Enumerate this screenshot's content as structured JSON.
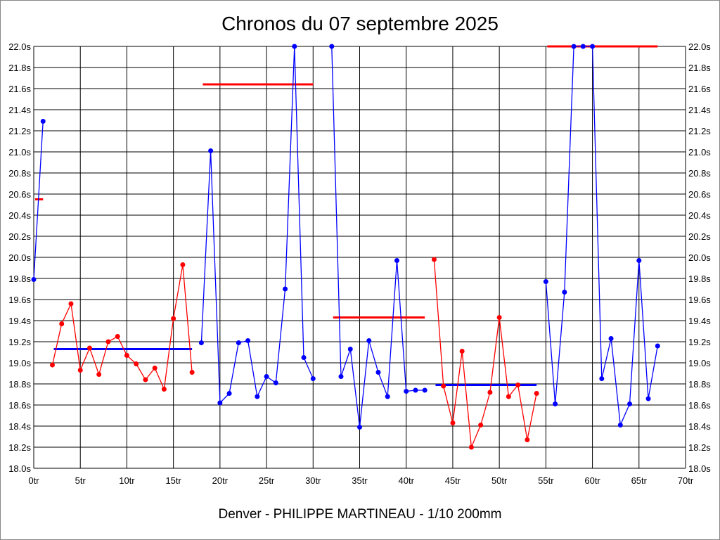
{
  "chart_data": {
    "type": "line",
    "title": "Chronos du 07 septembre 2025",
    "footer": "Denver - PHILIPPE MARTINEAU - 1/10 200mm",
    "xlim": [
      0,
      70
    ],
    "ylim": [
      18.0,
      22.0
    ],
    "grid": true,
    "x_ticks": [
      "0tr",
      "5tr",
      "10tr",
      "15tr",
      "20tr",
      "25tr",
      "30tr",
      "35tr",
      "40tr",
      "45tr",
      "50tr",
      "55tr",
      "60tr",
      "65tr",
      "70tr"
    ],
    "y_ticks": [
      "18.0s",
      "18.2s",
      "18.4s",
      "18.6s",
      "18.8s",
      "19.0s",
      "19.2s",
      "19.4s",
      "19.6s",
      "19.8s",
      "20.0s",
      "20.2s",
      "20.4s",
      "20.6s",
      "20.8s",
      "21.0s",
      "21.2s",
      "21.4s",
      "21.6s",
      "21.8s",
      "22.0s"
    ],
    "colors": {
      "blue": "#0000ff",
      "red": "#ff0000",
      "grid": "#000000"
    },
    "series": [
      {
        "color": "#0000ff",
        "x_start": 0,
        "values": [
          19.79,
          21.29
        ],
        "mean": 20.55,
        "mean_color": "#ff0000"
      },
      {
        "color": "#ff0000",
        "x_start": 2,
        "values": [
          18.98,
          19.37,
          19.56,
          18.93,
          19.14,
          18.89,
          19.2,
          19.25,
          19.07,
          18.99,
          18.84,
          18.95,
          18.75,
          19.42,
          19.93,
          18.91
        ],
        "mean": 19.13,
        "mean_color": "#0000ff"
      },
      {
        "color": "#0000ff",
        "x_start": 18,
        "values": [
          19.19,
          21.01,
          18.62,
          18.71,
          19.19,
          19.21,
          18.68,
          18.87,
          18.81,
          19.7,
          22.0,
          19.05,
          18.85
        ],
        "mean": 21.64,
        "mean_color": "#ff0000"
      },
      {
        "color": "#0000ff",
        "x_start": 32,
        "values": [
          22.0,
          18.87,
          19.13,
          18.39,
          19.21,
          18.91,
          18.68,
          19.97,
          18.73,
          18.74,
          18.74
        ],
        "mean": 19.43,
        "mean_color": "#ff0000"
      },
      {
        "color": "#ff0000",
        "x_start": 43,
        "values": [
          19.98,
          18.78,
          18.43,
          19.11,
          18.2,
          18.41,
          18.72,
          19.43,
          18.68,
          18.79,
          18.27,
          18.71
        ],
        "mean": 18.79,
        "mean_color": "#0000ff"
      },
      {
        "color": "#0000ff",
        "x_start": 55,
        "values": [
          19.77,
          18.61,
          19.67,
          22.0,
          22.0,
          22.0,
          18.85,
          19.23,
          18.41,
          18.61,
          19.97,
          18.66,
          19.16
        ],
        "mean": 22.0,
        "mean_color": "#ff0000"
      }
    ]
  }
}
